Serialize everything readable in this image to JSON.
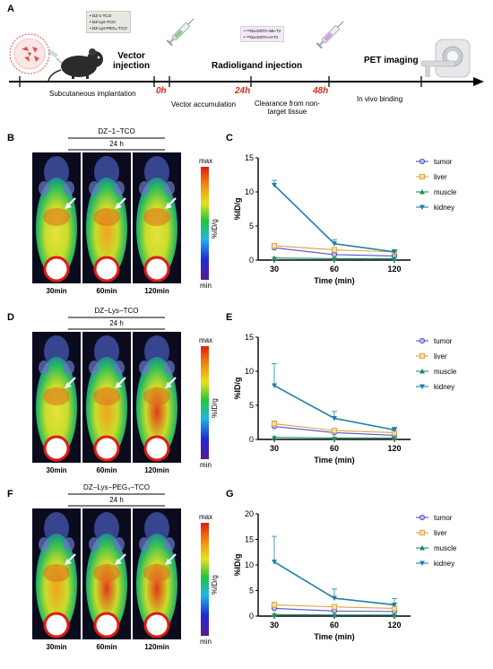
{
  "panel_labels": {
    "a": "A",
    "b": "B",
    "c": "C",
    "d": "D",
    "e": "E",
    "f": "F",
    "g": "G"
  },
  "timeline": {
    "vector_list": [
      "DZ-1-TCO",
      "DZ-Lys-TCO",
      "DZ-Lys-PEG₄-TCO"
    ],
    "radioligand_list": [
      "⁶⁸Ga-DOTA-Me-Tz",
      "⁶⁸Ga-DOTA-H-Tz"
    ],
    "vector_injection": [
      "Vector",
      "injection"
    ],
    "radioligand_injection": "Radioligand injection",
    "pet_imaging": "PET imaging",
    "times": [
      "0h",
      "24h",
      "48h"
    ],
    "below": {
      "subcutaneous": "Subcutaneous implantation",
      "accumulation": "Vector accumulation",
      "clearance": [
        "Clearance from non-",
        "target tissue"
      ],
      "binding": "In vivo binding"
    }
  },
  "image_panels": [
    {
      "compound": "DZ−1−TCO",
      "hours": "24 h",
      "times": [
        "30min",
        "60min",
        "120min"
      ],
      "scale_max": "max",
      "scale_min": "min",
      "scale_unit": "%ID/g"
    },
    {
      "compound": "DZ−Lys−TCO",
      "hours": "24 h",
      "times": [
        "30min",
        "60min",
        "120min"
      ],
      "scale_max": "max",
      "scale_min": "min",
      "scale_unit": "%ID/g"
    },
    {
      "compound": "DZ−Lys−PEG₄−TCO",
      "hours": "24 h",
      "times": [
        "30min",
        "60min",
        "120min"
      ],
      "scale_max": "max",
      "scale_min": "min",
      "scale_unit": "%ID/g"
    }
  ],
  "colors": {
    "tumor": "#4f55c4",
    "liver": "#d9a441",
    "muscle": "#1f8a6a",
    "kidney": "#1f7fa3",
    "time_red": "#d42e1d"
  },
  "chart_data": [
    {
      "type": "line",
      "xlabel": "Time (min)",
      "ylabel": "%ID/g",
      "categories": [
        "30",
        "60",
        "120"
      ],
      "yticks": [
        0,
        5,
        10,
        15
      ],
      "ylim": [
        0,
        15
      ],
      "legend_position": "top-right",
      "series": [
        {
          "name": "tumor",
          "values": [
            1.8,
            0.8,
            0.6
          ],
          "err": [
            0.3,
            0.2,
            0.2
          ]
        },
        {
          "name": "liver",
          "values": [
            2.1,
            1.5,
            1.2
          ],
          "err": [
            0.3,
            0.3,
            0.2
          ]
        },
        {
          "name": "muscle",
          "values": [
            0.3,
            0.2,
            0.2
          ],
          "err": [
            0.1,
            0.1,
            0.1
          ]
        },
        {
          "name": "kidney",
          "values": [
            11.0,
            2.4,
            1.2
          ],
          "err": [
            0.7,
            0.6,
            0.3
          ]
        }
      ]
    },
    {
      "type": "line",
      "xlabel": "Time (min)",
      "ylabel": "%ID/g",
      "categories": [
        "30",
        "60",
        "120"
      ],
      "yticks": [
        0,
        5,
        10,
        15
      ],
      "ylim": [
        0,
        15
      ],
      "legend_position": "top-right",
      "series": [
        {
          "name": "tumor",
          "values": [
            1.9,
            1.0,
            0.6
          ],
          "err": [
            0.4,
            0.3,
            0.2
          ]
        },
        {
          "name": "liver",
          "values": [
            2.3,
            1.3,
            1.0
          ],
          "err": [
            0.4,
            0.3,
            0.3
          ]
        },
        {
          "name": "muscle",
          "values": [
            0.3,
            0.2,
            0.2
          ],
          "err": [
            0.1,
            0.1,
            0.1
          ]
        },
        {
          "name": "kidney",
          "values": [
            7.9,
            3.1,
            1.4
          ],
          "err": [
            3.2,
            1.0,
            0.4
          ]
        }
      ]
    },
    {
      "type": "line",
      "xlabel": "Time (min)",
      "ylabel": "%ID/g",
      "categories": [
        "30",
        "60",
        "120"
      ],
      "yticks": [
        0,
        5,
        10,
        15,
        20
      ],
      "ylim": [
        0,
        20
      ],
      "legend_position": "top-right",
      "series": [
        {
          "name": "tumor",
          "values": [
            1.5,
            1.0,
            0.9
          ],
          "err": [
            0.4,
            0.3,
            0.3
          ]
        },
        {
          "name": "liver",
          "values": [
            2.2,
            1.8,
            1.5
          ],
          "err": [
            0.5,
            0.4,
            0.4
          ]
        },
        {
          "name": "muscle",
          "values": [
            0.3,
            0.2,
            0.2
          ],
          "err": [
            0.1,
            0.1,
            0.1
          ]
        },
        {
          "name": "kidney",
          "values": [
            10.6,
            3.5,
            2.2
          ],
          "err": [
            5.0,
            1.8,
            1.2
          ]
        }
      ]
    }
  ]
}
